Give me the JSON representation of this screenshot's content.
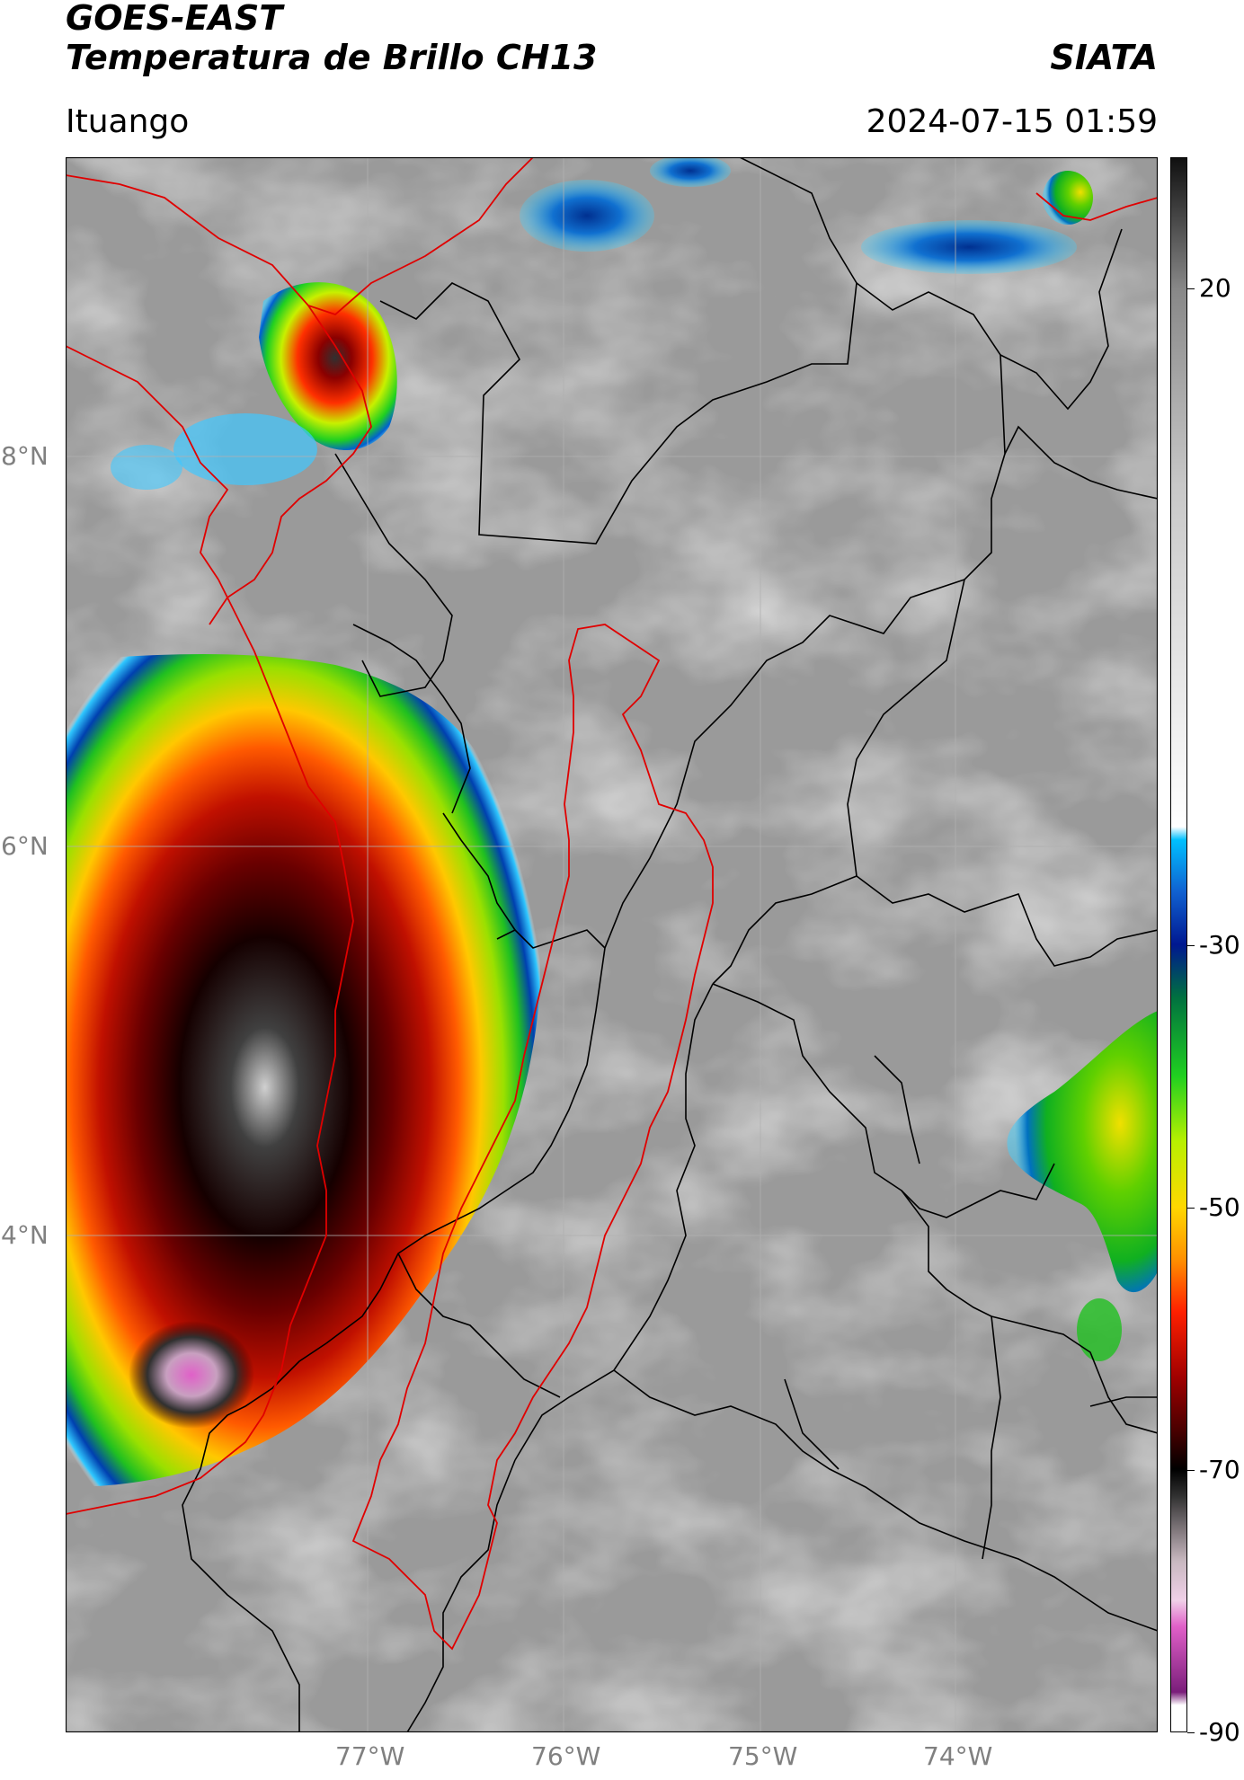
{
  "header": {
    "satellite": "GOES-EAST",
    "product": "Temperatura de Brillo CH13",
    "org": "SIATA",
    "region": "Ituango",
    "datetime": "2024-07-15 01:59"
  },
  "map": {
    "lat_labels": [
      "8°N",
      "6°N",
      "4°N"
    ],
    "lon_labels": [
      "77°W",
      "76°W",
      "75°W",
      "74°W"
    ],
    "lat_range": [
      2.5,
      9.5
    ],
    "lon_range": [
      -78.5,
      -72.5
    ]
  },
  "colorbar": {
    "min": -90,
    "max": 30,
    "ticks": [
      "20",
      "-30",
      "-50",
      "-70",
      "-90"
    ],
    "tick_values": [
      20,
      -30,
      -50,
      -70,
      -90
    ],
    "stops": [
      {
        "t": -90,
        "c": "#ffffff"
      },
      {
        "t": -88,
        "c": "#ffffff"
      },
      {
        "t": -87,
        "c": "#7a1e7a"
      },
      {
        "t": -82,
        "c": "#e060c8"
      },
      {
        "t": -80,
        "c": "#f0d0e8"
      },
      {
        "t": -77,
        "c": "#c8b8c0"
      },
      {
        "t": -72,
        "c": "#303030"
      },
      {
        "t": -70,
        "c": "#000000"
      },
      {
        "t": -67,
        "c": "#4a0000"
      },
      {
        "t": -63,
        "c": "#a00000"
      },
      {
        "t": -58,
        "c": "#ff2000"
      },
      {
        "t": -54,
        "c": "#ff9000"
      },
      {
        "t": -50,
        "c": "#ffd800"
      },
      {
        "t": -45,
        "c": "#b8f000"
      },
      {
        "t": -40,
        "c": "#20d020"
      },
      {
        "t": -34,
        "c": "#007040"
      },
      {
        "t": -30,
        "c": "#001890"
      },
      {
        "t": -26,
        "c": "#1060d0"
      },
      {
        "t": -22,
        "c": "#00c0ff"
      },
      {
        "t": -21,
        "c": "#ffffff"
      },
      {
        "t": 5,
        "c": "#c8c8c8"
      },
      {
        "t": 20,
        "c": "#888888"
      },
      {
        "t": 30,
        "c": "#101010"
      }
    ]
  },
  "colors": {
    "background": "#9a9a9a",
    "border_line": "#000000",
    "basin_line": "#e00000",
    "grid_line": "#b0b0b0"
  }
}
